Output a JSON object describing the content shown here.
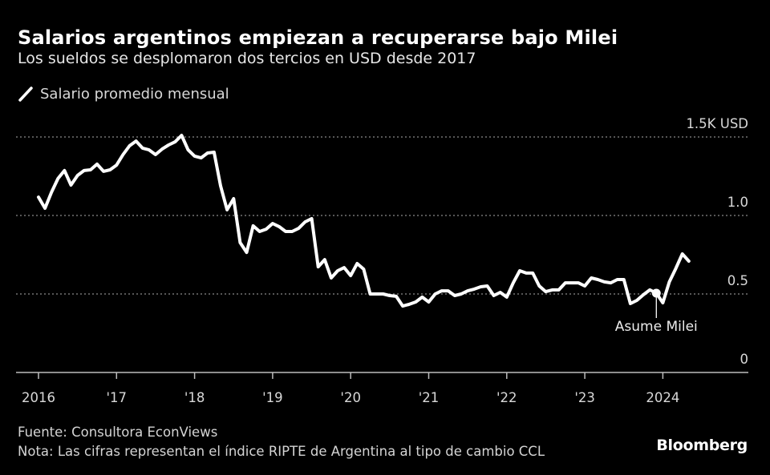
{
  "header": {
    "title": "Salarios argentinos empiezan a recuperarse bajo Milei",
    "subtitle": "Los sueldos se desplomaron dos tercios en USD desde 2017"
  },
  "legend": {
    "icon": "line-slash-icon",
    "label": "Salario promedio mensual",
    "color": "#ffffff"
  },
  "footer": {
    "source": "Fuente: Consultora EconViews",
    "note": "Nota: Las cifras representan el índice RIPTE de Argentina al tipo de cambio CCL",
    "brand": "Bloomberg"
  },
  "colors": {
    "background": "#000000",
    "line": "#ffffff",
    "grid": "#8a8a8a",
    "axis": "#bdbdbd"
  },
  "chart_data": {
    "type": "line",
    "title": "Salarios argentinos empiezan a recuperarse bajo Milei",
    "subtitle": "Los sueldos se desplomaron dos tercios en USD desde 2017",
    "xlabel": "",
    "ylabel": "USD",
    "x_start": "2016-01",
    "frequency": "monthly",
    "x_range_years": [
      2016.0,
      2025.0
    ],
    "ylim": [
      0,
      1500
    ],
    "grid": true,
    "legend_position": "top-left",
    "y_ticks": [
      {
        "value": 1500,
        "label": "1.5K USD"
      },
      {
        "value": 1000,
        "label": "1.0"
      },
      {
        "value": 500,
        "label": "0.5"
      },
      {
        "value": 0,
        "label": "0"
      }
    ],
    "x_ticks": [
      {
        "year": 2016,
        "label": "2016"
      },
      {
        "year": 2017,
        "label": "'17"
      },
      {
        "year": 2018,
        "label": "'18"
      },
      {
        "year": 2019,
        "label": "'19"
      },
      {
        "year": 2020,
        "label": "'20"
      },
      {
        "year": 2021,
        "label": "'21"
      },
      {
        "year": 2022,
        "label": "'22"
      },
      {
        "year": 2023,
        "label": "'23"
      },
      {
        "year": 2024,
        "label": "2024"
      }
    ],
    "series": [
      {
        "name": "Salario promedio mensual",
        "values": [
          1117,
          1046,
          1148,
          1235,
          1286,
          1194,
          1255,
          1286,
          1291,
          1327,
          1281,
          1291,
          1321,
          1388,
          1444,
          1474,
          1429,
          1418,
          1388,
          1423,
          1449,
          1469,
          1510,
          1418,
          1378,
          1367,
          1398,
          1403,
          1189,
          1036,
          1107,
          827,
          765,
          934,
          898,
          913,
          949,
          929,
          898,
          898,
          918,
          959,
          980,
          673,
          719,
          602,
          648,
          668,
          617,
          694,
          658,
          500,
          500,
          500,
          490,
          485,
          423,
          434,
          449,
          480,
          449,
          500,
          520,
          520,
          490,
          500,
          520,
          531,
          546,
          551,
          490,
          510,
          480,
          571,
          648,
          633,
          633,
          551,
          515,
          526,
          526,
          571,
          571,
          571,
          551,
          602,
          592,
          577,
          571,
          592,
          592,
          439,
          459,
          495,
          526,
          505,
          444,
          577,
          663,
          755,
          709
        ]
      }
    ],
    "annotations": [
      {
        "label": "Asume Milei",
        "date": "2023-12",
        "value": 505
      }
    ]
  }
}
